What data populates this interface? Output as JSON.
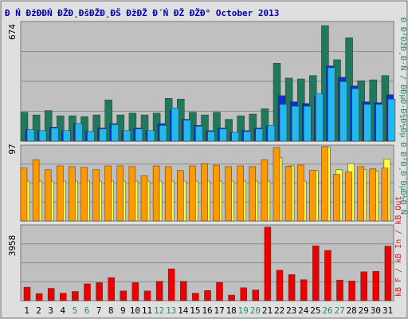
{
  "chart_data": [
    {
      "type": "bar",
      "title": "Ð Ń ĐžĐĐŃ ĐŽĐ¸ĐšĐŽĐ¸ĐŠ ĐžĐŽ Đ´Ń ĐŽ ĐŽĐ° October 2013",
      "categories": [
        "1",
        "2",
        "3",
        "4",
        "5",
        "6",
        "7",
        "8",
        "9",
        "10",
        "11",
        "12",
        "13",
        "14",
        "15",
        "16",
        "17",
        "18",
        "19",
        "20",
        "21",
        "22",
        "23",
        "24",
        "25",
        "26",
        "27",
        "28",
        "29",
        "30",
        "31"
      ],
      "weekend_days": [
        "5",
        "6",
        "12",
        "13",
        "19",
        "20",
        "26",
        "27"
      ],
      "ymax_label": "674",
      "ylim": [
        0,
        674
      ],
      "side_label": "Ð Ð²ĐžÐ¸Ð·Ñ / ÐÐµÐ·Ð¾Ð½Ðµ Ð Ð²Ð¸Ð´ÐµÐ½Ð¸Ñ",
      "series": [
        {
          "color": "#1f7a5c",
          "values": [
            165,
            150,
            175,
            145,
            145,
            140,
            150,
            235,
            150,
            160,
            150,
            160,
            245,
            240,
            165,
            150,
            165,
            125,
            145,
            155,
            185,
            445,
            360,
            355,
            375,
            660,
            465,
            590,
            345,
            350,
            375
          ]
        },
        {
          "color": "#0d2fd9",
          "values": [
            65,
            60,
            80,
            60,
            100,
            55,
            75,
            100,
            60,
            75,
            60,
            100,
            175,
            125,
            90,
            60,
            75,
            50,
            60,
            75,
            85,
            260,
            225,
            215,
            255,
            430,
            365,
            315,
            225,
            220,
            265
          ]
        },
        {
          "color": "#22b8f0",
          "values": [
            65,
            60,
            75,
            60,
            100,
            55,
            70,
            95,
            60,
            70,
            60,
            90,
            190,
            120,
            85,
            55,
            70,
            50,
            55,
            70,
            90,
            210,
            200,
            200,
            270,
            420,
            340,
            300,
            210,
            210,
            240
          ]
        }
      ]
    },
    {
      "type": "bar",
      "ymax_label": "97",
      "ylim": [
        0,
        97
      ],
      "series": [
        {
          "color": "#ffff44",
          "values": [
            52,
            52,
            52,
            52,
            52,
            52,
            52,
            52,
            52,
            52,
            52,
            52,
            52,
            52,
            52,
            52,
            52,
            52,
            52,
            52,
            52,
            83,
            72,
            52,
            66,
            97,
            67,
            75,
            67,
            65,
            81
          ]
        },
        {
          "color": "#ff9900",
          "values": [
            69,
            80,
            67,
            72,
            71,
            70,
            67,
            72,
            72,
            71,
            59,
            72,
            71,
            66,
            72,
            75,
            73,
            71,
            72,
            71,
            80,
            96,
            71,
            73,
            66,
            97,
            61,
            64,
            71,
            68,
            69
          ]
        }
      ]
    },
    {
      "type": "bar",
      "ymax_label": "3958",
      "ylim": [
        0,
        3958
      ],
      "side_label": "kB F / kB In / kB Out",
      "series": [
        {
          "color": "#ee0000",
          "values": [
            720,
            380,
            660,
            400,
            490,
            900,
            960,
            1230,
            520,
            960,
            520,
            1030,
            1700,
            1030,
            400,
            540,
            970,
            300,
            690,
            570,
            3930,
            1630,
            1390,
            1120,
            2930,
            2680,
            1100,
            1050,
            1540,
            1560,
            2910
          ]
        }
      ]
    }
  ]
}
